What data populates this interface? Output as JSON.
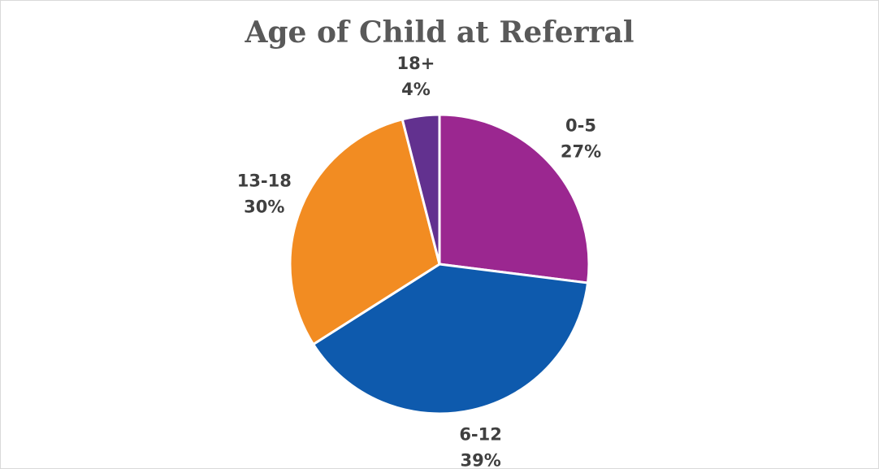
{
  "chart_data": {
    "type": "pie",
    "title": "Age of Child at Referral",
    "categories": [
      "0-5",
      "6-12",
      "13-18",
      "18+"
    ],
    "values": [
      27,
      39,
      30,
      4
    ],
    "value_labels": [
      "27%",
      "39%",
      "30%",
      "4%"
    ],
    "colors": [
      "#9b2790",
      "#0e5aad",
      "#f28c22",
      "#62318f"
    ]
  }
}
